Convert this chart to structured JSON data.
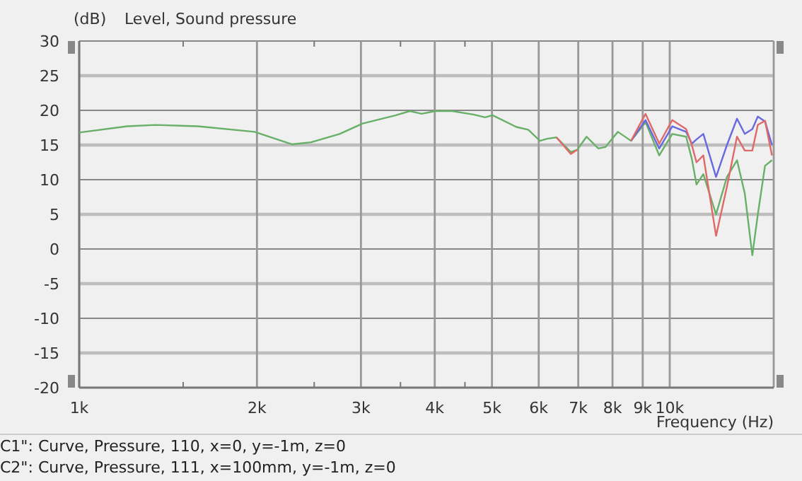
{
  "chart_data": {
    "type": "line",
    "title": "Level, Sound pressure",
    "ylabel": "(dB)",
    "xlabel": "Frequency  (Hz)",
    "log": "x",
    "annotations": [
      "C1\": Curve, Pressure, 110, x=0, y=-1m, z=0",
      "C2\": Curve, Pressure, 111, x=100mm, y=-1m, z=0"
    ],
    "x": [
      1000,
      1206,
      1347,
      1589,
      1981,
      2295,
      2470,
      2760,
      3020,
      3440,
      3630,
      3800,
      4010,
      4280,
      4650,
      4870,
      5010,
      5500,
      5760,
      6030,
      6200,
      6430,
      6800,
      6970,
      7230,
      7570,
      7780,
      8170,
      8600,
      9100,
      9600,
      10100,
      10660,
      10900,
      11100,
      11400,
      11980,
      12500,
      13000,
      13400,
      13800,
      14100,
      14500,
      14900
    ],
    "series": [
      {
        "color": "#e06868",
        "values": [
          null,
          null,
          null,
          null,
          null,
          null,
          null,
          null,
          null,
          null,
          null,
          null,
          null,
          null,
          null,
          null,
          null,
          null,
          null,
          null,
          null,
          16.1,
          13.7,
          14.3,
          null,
          null,
          null,
          null,
          15.6,
          19.5,
          15.2,
          18.6,
          17.3,
          15.0,
          12.5,
          13.5,
          1.9,
          9,
          16.2,
          14.2,
          14.2,
          17.9,
          18.5,
          13.5
        ]
      },
      {
        "color": "#6868e0",
        "values": [
          null,
          null,
          null,
          null,
          null,
          null,
          null,
          null,
          null,
          null,
          null,
          null,
          null,
          null,
          null,
          null,
          null,
          null,
          null,
          null,
          null,
          null,
          null,
          null,
          null,
          null,
          null,
          null,
          15.6,
          18.6,
          14.5,
          17.7,
          16.9,
          15.2,
          15.8,
          16.6,
          10.4,
          15,
          18.8,
          16.6,
          17.3,
          19.1,
          18.4,
          15.0
        ]
      },
      {
        "color": "#68b068",
        "values": [
          16.8,
          17.7,
          17.9,
          17.7,
          16.9,
          15.1,
          15.4,
          16.6,
          18.1,
          19.3,
          19.9,
          19.5,
          19.9,
          19.9,
          19.4,
          19.0,
          19.3,
          17.6,
          17.2,
          15.6,
          15.9,
          16.1,
          14.0,
          14.3,
          16.2,
          14.5,
          14.7,
          16.9,
          15.6,
          18.3,
          13.5,
          16.6,
          16.2,
          13,
          9.3,
          10.8,
          5.0,
          10.4,
          12.8,
          8,
          -0.9,
          5,
          12,
          12.8
        ]
      }
    ],
    "xlim": [
      1000,
      15000
    ],
    "xticks": [
      {
        "value": 1000,
        "label": "1k"
      },
      {
        "value": 1500,
        "label": null
      },
      {
        "value": 2000,
        "label": "2k"
      },
      {
        "value": 2500,
        "label": null
      },
      {
        "value": 3000,
        "label": "3k"
      },
      {
        "value": 3500,
        "label": null
      },
      {
        "value": 4000,
        "label": "4k"
      },
      {
        "value": 4500,
        "label": null
      },
      {
        "value": 5000,
        "label": "5k"
      },
      {
        "value": 6000,
        "label": "6k"
      },
      {
        "value": 7000,
        "label": "7k"
      },
      {
        "value": 8000,
        "label": "8k"
      },
      {
        "value": 9000,
        "label": "9k"
      },
      {
        "value": 10000,
        "label": "10k"
      }
    ],
    "ylim": [
      -20,
      30
    ],
    "yticks": [
      -20,
      -15,
      -10,
      -5,
      0,
      5,
      10,
      15,
      20,
      25,
      30
    ],
    "grid": true
  }
}
